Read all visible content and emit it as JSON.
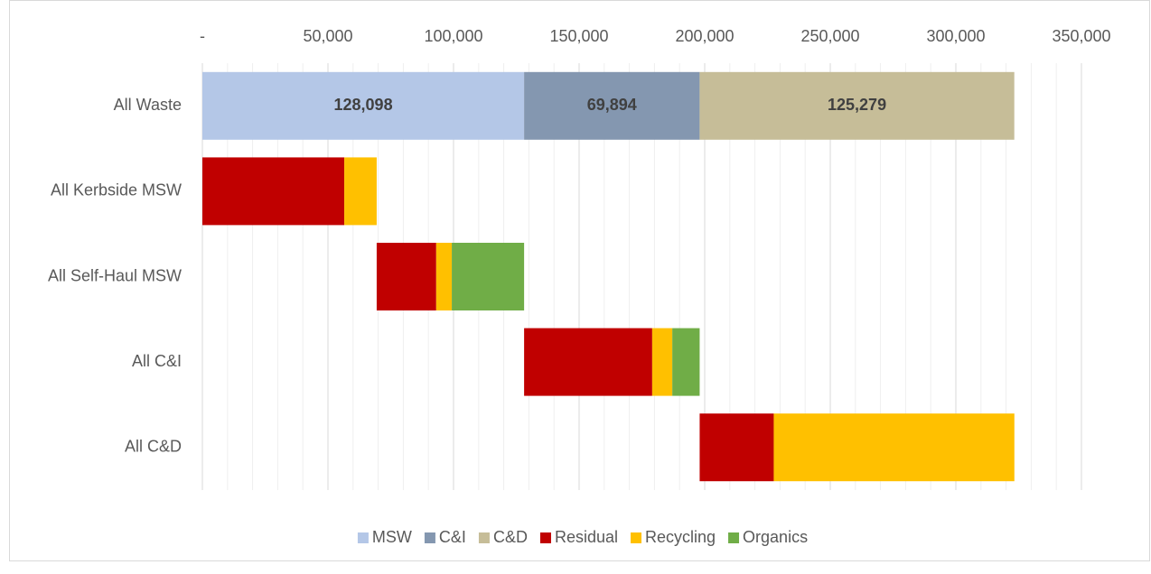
{
  "chart_data": {
    "type": "stacked_barh",
    "categories": [
      "All Waste",
      "All Kerbside MSW",
      "All Self-Haul MSW",
      "All C&I",
      "All C&D"
    ],
    "series": [
      {
        "color": null,
        "values": [
          0,
          0,
          69400,
          128098,
          198000
        ]
      },
      {
        "name": "MSW",
        "color": "#b4c7e7",
        "values": [
          128098,
          null,
          null,
          null,
          null
        ],
        "value_labels": [
          "128,098",
          null,
          null,
          null,
          null
        ]
      },
      {
        "name": "C&I",
        "color": "#8497b0",
        "values": [
          69894,
          null,
          null,
          null,
          null
        ],
        "value_labels": [
          "69,894",
          null,
          null,
          null,
          null
        ]
      },
      {
        "name": "C&D",
        "color": "#c6bd98",
        "values": [
          125279,
          null,
          null,
          null,
          null
        ],
        "value_labels": [
          "125,279",
          null,
          null,
          null,
          null
        ]
      },
      {
        "name": "Residual",
        "color": "#c00000",
        "values": [
          null,
          56500,
          23700,
          51000,
          29500
        ]
      },
      {
        "name": "Recycling",
        "color": "#ffc000",
        "values": [
          null,
          12900,
          6200,
          8000,
          95800
        ]
      },
      {
        "name": "Organics",
        "color": "#70ad47",
        "values": [
          null,
          null,
          28800,
          10900,
          null
        ]
      }
    ],
    "xlim": [
      0,
      350000
    ],
    "xticks": [
      {
        "value": 0,
        "label": "-"
      },
      {
        "value": 50000,
        "label": "50,000"
      },
      {
        "value": 100000,
        "label": "100,000"
      },
      {
        "value": 150000,
        "label": "150,000"
      },
      {
        "value": 200000,
        "label": "200,000"
      },
      {
        "value": 250000,
        "label": "250,000"
      },
      {
        "value": 300000,
        "label": "300,000"
      },
      {
        "value": 350000,
        "label": "350,000"
      }
    ],
    "xminorticks": [
      10000,
      20000,
      30000,
      40000,
      60000,
      70000,
      80000,
      90000,
      110000,
      120000,
      130000,
      140000,
      160000,
      170000,
      180000,
      190000,
      210000,
      220000,
      230000,
      240000,
      260000,
      270000,
      280000,
      290000,
      310000,
      320000,
      330000,
      340000
    ],
    "grid": true,
    "legend": "bottom"
  }
}
